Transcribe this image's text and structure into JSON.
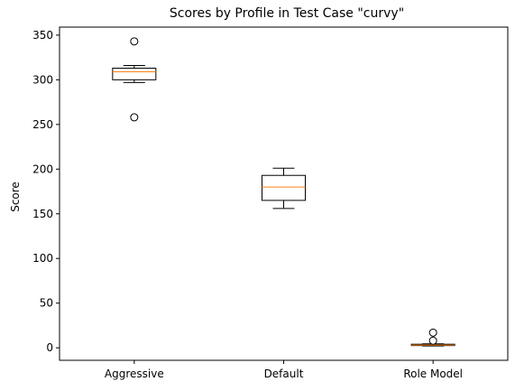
{
  "chart_data": {
    "type": "boxplot",
    "title": "Scores by Profile in Test Case \"curvy\"",
    "xlabel": "",
    "ylabel": "Score",
    "ylim": [
      -14,
      359
    ],
    "yticks": [
      0,
      50,
      100,
      150,
      200,
      250,
      300,
      350
    ],
    "grid": false,
    "categories": [
      "Aggressive",
      "Default",
      "Role Model"
    ],
    "boxes": [
      {
        "label": "Aggressive",
        "whisker_low": 297,
        "q1": 300,
        "median": 309,
        "q3": 313,
        "whisker_high": 316,
        "outliers": [
          343,
          258
        ]
      },
      {
        "label": "Default",
        "whisker_low": 156,
        "q1": 165,
        "median": 180,
        "q3": 193,
        "whisker_high": 201,
        "outliers": []
      },
      {
        "label": "Role Model",
        "whisker_low": 2,
        "q1": 2.5,
        "median": 3,
        "q3": 4,
        "whisker_high": 4.5,
        "outliers": [
          17,
          8
        ]
      }
    ],
    "colors": {
      "box": "#000000",
      "median": "#ff7f0e",
      "outlier_face": "#ffffff"
    }
  }
}
